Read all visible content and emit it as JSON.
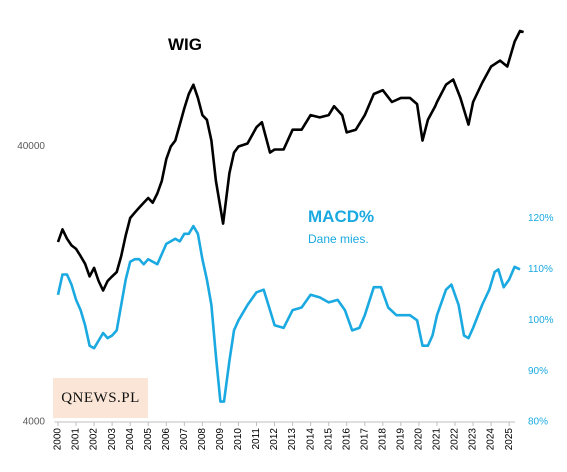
{
  "chart_data": {
    "type": "line",
    "logo": "QNEWS.PL",
    "annotations": [
      "Dane mies."
    ],
    "xlim": [
      1999.8,
      2026.1
    ],
    "xticks": [
      2000,
      2001,
      2002,
      2003,
      2004,
      2005,
      2006,
      2007,
      2008,
      2009,
      2010,
      2011,
      2012,
      2013,
      2014,
      2015,
      2016,
      2017,
      2018,
      2019,
      2020,
      2021,
      2022,
      2023,
      2024,
      2025
    ],
    "ylim": [
      4000,
      120000
    ],
    "ylog": true,
    "yticks": [
      4000,
      40000
    ],
    "y2lim": [
      80,
      160
    ],
    "y2ticks": [
      {
        "value": 80,
        "label": "80%"
      },
      {
        "value": 90,
        "label": "90%"
      },
      {
        "value": 100,
        "label": "100%"
      },
      {
        "value": 110,
        "label": "110%"
      },
      {
        "value": 120,
        "label": "120%"
      }
    ],
    "series": [
      {
        "name": "WIG",
        "color": "#000000",
        "x": [
          2000,
          2000.25,
          2000.5,
          2000.75,
          2001,
          2001.25,
          2001.5,
          2001.75,
          2002,
          2002.25,
          2002.5,
          2002.75,
          2003,
          2003.25,
          2003.5,
          2003.75,
          2004,
          2004.25,
          2004.5,
          2004.75,
          2005,
          2005.25,
          2005.5,
          2005.75,
          2006,
          2006.25,
          2006.5,
          2006.75,
          2007,
          2007.25,
          2007.5,
          2007.75,
          2008,
          2008.25,
          2008.5,
          2008.75,
          2009,
          2009.15,
          2009.5,
          2009.75,
          2010,
          2010.5,
          2011,
          2011.3,
          2011.75,
          2012,
          2012.5,
          2013,
          2013.5,
          2014,
          2014.5,
          2015,
          2015.3,
          2015.75,
          2016,
          2016.5,
          2017,
          2017.5,
          2018,
          2018.5,
          2019,
          2019.5,
          2019.9,
          2020.2,
          2020.5,
          2020.9,
          2021,
          2021.5,
          2021.9,
          2022.3,
          2022.75,
          2023,
          2023.5,
          2024,
          2024.5,
          2024.9,
          2025.3,
          2025.6,
          2025.8
        ],
        "values": [
          18000,
          20000,
          18500,
          17500,
          17000,
          16000,
          15000,
          13500,
          14500,
          13000,
          12000,
          13000,
          13500,
          14000,
          16000,
          19000,
          22000,
          23000,
          24000,
          25000,
          26000,
          25000,
          27000,
          30000,
          36000,
          40000,
          42000,
          48000,
          55000,
          62000,
          67000,
          60000,
          52000,
          50000,
          42000,
          30000,
          24000,
          21000,
          32000,
          38000,
          40000,
          41000,
          47000,
          49000,
          38000,
          39000,
          39000,
          46000,
          46000,
          52000,
          51000,
          52000,
          56000,
          52000,
          45000,
          46000,
          52000,
          62000,
          64000,
          58000,
          60000,
          60000,
          57000,
          42000,
          50000,
          56000,
          58000,
          67000,
          70000,
          60000,
          48000,
          58000,
          68000,
          78000,
          82000,
          78000,
          96000,
          105000,
          104000
        ]
      },
      {
        "name": "MACD%",
        "color": "#1aa9e0",
        "axis": "y2",
        "x": [
          2000,
          2000.25,
          2000.5,
          2000.75,
          2001,
          2001.25,
          2001.5,
          2001.75,
          2002,
          2002.25,
          2002.5,
          2002.75,
          2003,
          2003.25,
          2003.5,
          2003.75,
          2004,
          2004.25,
          2004.5,
          2004.75,
          2005,
          2005.5,
          2005.75,
          2006,
          2006.5,
          2006.75,
          2007,
          2007.25,
          2007.5,
          2007.75,
          2008,
          2008.25,
          2008.5,
          2008.75,
          2009,
          2009.2,
          2009.5,
          2009.75,
          2010,
          2010.5,
          2011,
          2011.4,
          2011.75,
          2012,
          2012.5,
          2013,
          2013.5,
          2014,
          2014.5,
          2015,
          2015.5,
          2015.9,
          2016.3,
          2016.7,
          2017,
          2017.5,
          2017.9,
          2018.3,
          2018.75,
          2019,
          2019.5,
          2019.9,
          2020.2,
          2020.5,
          2020.75,
          2021,
          2021.5,
          2021.8,
          2022.2,
          2022.5,
          2022.75,
          2023,
          2023.5,
          2023.9,
          2024.2,
          2024.4,
          2024.7,
          2025,
          2025.3,
          2025.6
        ],
        "values": [
          105,
          109,
          109,
          107,
          104,
          102,
          99,
          95,
          94.5,
          96,
          97.5,
          96.5,
          97,
          98,
          103,
          108,
          111.5,
          112,
          112,
          111,
          112,
          111,
          113,
          115,
          116,
          115.5,
          117,
          117,
          118.5,
          117,
          112,
          108,
          103,
          93,
          84,
          84,
          92,
          98,
          100,
          103,
          105.5,
          106,
          102,
          99,
          98.5,
          102,
          102.5,
          105,
          104.5,
          103.5,
          104,
          102,
          98,
          98.5,
          101,
          106.5,
          106.5,
          102.5,
          101,
          101,
          101,
          100,
          95,
          95,
          97,
          101,
          106,
          107,
          103,
          97,
          96.5,
          98.5,
          103,
          106,
          109.5,
          110,
          106.5,
          108,
          110.5,
          110
        ]
      }
    ]
  }
}
